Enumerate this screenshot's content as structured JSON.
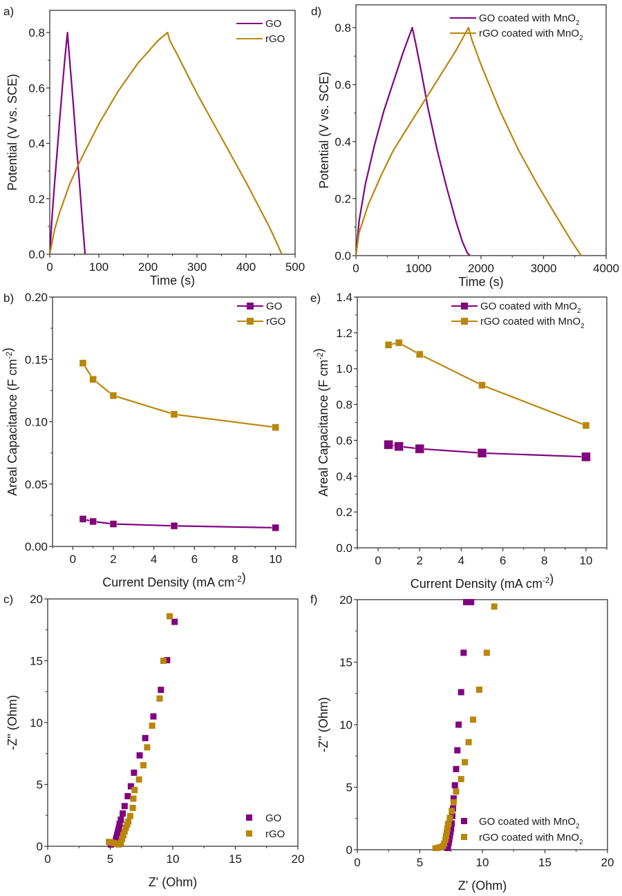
{
  "colors": {
    "go": "#800080",
    "rgo": "#b8860b",
    "axis": "#333333"
  },
  "chart_data": [
    {
      "id": "a",
      "panel_label": "a)",
      "type": "line",
      "xlabel": "Time (s)",
      "ylabel": "Potential (V vs. SCE)",
      "xlim": [
        0,
        500
      ],
      "ylim": [
        0,
        0.88
      ],
      "xticks": [
        0,
        100,
        200,
        300,
        400,
        500
      ],
      "yticks": [
        0.0,
        0.2,
        0.4,
        0.6,
        0.8
      ],
      "xtick_labels": [
        "0",
        "100",
        "200",
        "300",
        "400",
        "500"
      ],
      "ytick_labels": [
        "0.0",
        "0.2",
        "0.4",
        "0.6",
        "0.8"
      ],
      "legend_position": "top-right",
      "series": [
        {
          "name": "GO",
          "color_key": "go",
          "x": [
            0,
            5,
            10,
            15,
            20,
            25,
            30,
            36,
            42,
            48,
            54,
            60,
            66,
            72
          ],
          "y": [
            0,
            0.14,
            0.26,
            0.37,
            0.48,
            0.59,
            0.69,
            0.8,
            0.67,
            0.54,
            0.4,
            0.27,
            0.13,
            0
          ]
        },
        {
          "name": "rGO",
          "color_key": "rgo",
          "x": [
            0,
            10,
            20,
            40,
            60,
            80,
            100,
            120,
            140,
            160,
            180,
            200,
            220,
            240,
            245,
            260,
            300,
            350,
            400,
            450,
            473
          ],
          "y": [
            0,
            0.09,
            0.15,
            0.25,
            0.33,
            0.4,
            0.47,
            0.53,
            0.59,
            0.64,
            0.69,
            0.73,
            0.77,
            0.8,
            0.77,
            0.72,
            0.58,
            0.42,
            0.26,
            0.09,
            0
          ]
        }
      ]
    },
    {
      "id": "d",
      "panel_label": "d)",
      "type": "line",
      "xlabel": "Time (s)",
      "ylabel": "Potential (V vs. SCE)",
      "xlim": [
        0,
        4000
      ],
      "ylim": [
        0,
        0.88
      ],
      "xticks": [
        0,
        1000,
        2000,
        3000,
        4000
      ],
      "yticks": [
        0.0,
        0.2,
        0.4,
        0.6,
        0.8
      ],
      "xtick_labels": [
        "0",
        "1000",
        "2000",
        "3000",
        "4000"
      ],
      "ytick_labels": [
        "0.0",
        "0.2",
        "0.4",
        "0.6",
        "0.8"
      ],
      "legend_position": "top-right",
      "series": [
        {
          "name": "GO coated with MnO2",
          "color_key": "go",
          "x": [
            0,
            50,
            150,
            300,
            450,
            600,
            750,
            900,
            950,
            1050,
            1150,
            1300,
            1450,
            1600,
            1700,
            1780,
            1820
          ],
          "y": [
            0,
            0.12,
            0.25,
            0.39,
            0.51,
            0.61,
            0.71,
            0.8,
            0.75,
            0.64,
            0.52,
            0.37,
            0.24,
            0.12,
            0.05,
            0.01,
            0
          ]
        },
        {
          "name": "rGO coated with MnO2",
          "color_key": "rgo",
          "x": [
            0,
            50,
            200,
            400,
            600,
            800,
            1000,
            1200,
            1400,
            1600,
            1800,
            1850,
            2000,
            2300,
            2600,
            2900,
            3200,
            3450,
            3600
          ],
          "y": [
            0,
            0.08,
            0.18,
            0.28,
            0.37,
            0.44,
            0.51,
            0.58,
            0.65,
            0.72,
            0.8,
            0.76,
            0.67,
            0.51,
            0.37,
            0.25,
            0.14,
            0.05,
            0
          ]
        }
      ]
    },
    {
      "id": "b",
      "panel_label": "b)",
      "type": "line",
      "xlabel": "Current Density (mA cm-2)",
      "ylabel": "Areal Capacitance (F cm-2)",
      "xlim": [
        -1,
        11
      ],
      "ylim": [
        0,
        0.2
      ],
      "xticks": [
        0,
        2,
        4,
        6,
        8,
        10
      ],
      "yticks": [
        0.0,
        0.05,
        0.1,
        0.15,
        0.2
      ],
      "xtick_labels": [
        "0",
        "2",
        "4",
        "6",
        "8",
        "10"
      ],
      "ytick_labels": [
        "0.00",
        "0.05",
        "0.10",
        "0.15",
        "0.20"
      ],
      "legend_position": "top-right",
      "markers": "square",
      "series": [
        {
          "name": "GO",
          "color_key": "go",
          "x": [
            0.5,
            1,
            2,
            5,
            10
          ],
          "y": [
            0.022,
            0.02,
            0.018,
            0.0165,
            0.015
          ]
        },
        {
          "name": "rGO",
          "color_key": "rgo",
          "x": [
            0.5,
            1,
            2,
            5,
            10
          ],
          "y": [
            0.147,
            0.134,
            0.121,
            0.106,
            0.0955
          ]
        }
      ]
    },
    {
      "id": "e",
      "panel_label": "e)",
      "type": "line",
      "xlabel": "Current Density (mA cm-2)",
      "ylabel": "Areal Capacitance (F cm-2)",
      "xlim": [
        -1,
        11
      ],
      "ylim": [
        0,
        1.4
      ],
      "xticks": [
        0,
        2,
        4,
        6,
        8,
        10
      ],
      "yticks": [
        0.0,
        0.2,
        0.4,
        0.6,
        0.8,
        1.0,
        1.2,
        1.4
      ],
      "xtick_labels": [
        "0",
        "2",
        "4",
        "6",
        "8",
        "10"
      ],
      "ytick_labels": [
        "0.0",
        "0.2",
        "0.4",
        "0.6",
        "0.8",
        "1.0",
        "1.2",
        "1.4"
      ],
      "legend_position": "top-right",
      "markers": "square",
      "series": [
        {
          "name": "GO coated with MnO2",
          "color_key": "go",
          "x": [
            0.5,
            1,
            2,
            5,
            10
          ],
          "y": [
            0.576,
            0.566,
            0.553,
            0.529,
            0.508
          ]
        },
        {
          "name": "rGO coated with MnO2",
          "color_key": "rgo",
          "x": [
            0.5,
            1,
            2,
            5,
            10
          ],
          "y": [
            1.133,
            1.145,
            1.08,
            0.908,
            0.683
          ]
        }
      ]
    },
    {
      "id": "c",
      "panel_label": "c)",
      "type": "scatter",
      "xlabel": "Z' (Ohm)",
      "ylabel": "-Z'' (Ohm)",
      "xlim": [
        0,
        20
      ],
      "ylim": [
        0,
        20
      ],
      "xticks": [
        0,
        5,
        10,
        15,
        20
      ],
      "yticks": [
        0,
        5,
        10,
        15,
        20
      ],
      "xtick_labels": [
        "0",
        "5",
        "10",
        "15",
        "20"
      ],
      "ytick_labels": [
        "0",
        "5",
        "10",
        "15",
        "20"
      ],
      "legend_position": "bottom-right",
      "series": [
        {
          "name": "GO",
          "color_key": "go",
          "x": [
            5.05,
            5.2,
            5.35,
            5.45,
            5.5,
            5.55,
            5.6,
            5.65,
            5.7,
            5.75,
            5.85,
            6.0,
            6.15,
            6.4,
            6.65,
            6.9,
            7.35,
            7.8,
            8.45,
            9.05,
            9.55,
            10.15
          ],
          "y": [
            0.1,
            0.2,
            0.3,
            0.5,
            0.7,
            0.9,
            1.1,
            1.3,
            1.5,
            1.8,
            2.15,
            2.65,
            3.25,
            4.05,
            4.85,
            5.95,
            7.35,
            8.75,
            10.5,
            12.65,
            15.05,
            18.15
          ]
        },
        {
          "name": "rGO",
          "color_key": "rgo",
          "x": [
            4.9,
            5.1,
            5.3,
            5.5,
            5.7,
            5.85,
            5.95,
            6.05,
            6.15,
            6.25,
            6.35,
            6.45,
            6.6,
            6.8,
            6.85,
            6.95,
            7.3,
            7.65,
            7.95,
            8.35,
            8.95,
            9.25,
            9.75
          ],
          "y": [
            0.35,
            0.3,
            0.25,
            0.2,
            0.15,
            0.3,
            0.6,
            0.9,
            1.2,
            1.5,
            1.75,
            2.0,
            2.45,
            3.1,
            3.85,
            4.55,
            5.4,
            6.55,
            8.0,
            9.75,
            11.95,
            15.0,
            18.6
          ]
        }
      ]
    },
    {
      "id": "f",
      "panel_label": "f)",
      "type": "scatter",
      "xlabel": "Z' (Ohm)",
      "ylabel": "-Z'' (Ohm)",
      "xlim": [
        0,
        20
      ],
      "ylim": [
        0,
        20
      ],
      "xticks": [
        0,
        5,
        10,
        15,
        20
      ],
      "yticks": [
        0,
        5,
        10,
        15,
        20
      ],
      "xtick_labels": [
        "0",
        "5",
        "10",
        "15",
        "20"
      ],
      "ytick_labels": [
        "0",
        "5",
        "10",
        "15",
        "20"
      ],
      "legend_position": "bottom-right",
      "series": [
        {
          "name": "GO coated with MnO2",
          "color_key": "go",
          "x": [
            7.2,
            7.25,
            7.3,
            7.35,
            7.4,
            7.45,
            7.5,
            7.55,
            7.6,
            7.65,
            7.7,
            7.8,
            7.9,
            8.0,
            8.1,
            8.3,
            8.5,
            8.7,
            9.1
          ],
          "y": [
            0.1,
            0.3,
            0.55,
            0.8,
            1.1,
            1.4,
            1.7,
            2.1,
            2.7,
            3.3,
            4.1,
            5.15,
            6.45,
            7.95,
            10.0,
            12.6,
            15.75,
            19.8,
            19.8
          ]
        },
        {
          "name": "rGO coated with MnO2",
          "color_key": "rgo",
          "x": [
            6.25,
            6.45,
            6.65,
            6.85,
            6.95,
            7.05,
            7.1,
            7.15,
            7.2,
            7.25,
            7.3,
            7.4,
            7.55,
            7.7,
            7.9,
            8.3,
            8.6,
            8.9,
            9.25,
            9.75,
            10.35,
            10.95
          ],
          "y": [
            0.1,
            0.15,
            0.2,
            0.3,
            0.5,
            0.8,
            1.1,
            1.4,
            1.7,
            2.0,
            2.1,
            2.55,
            3.1,
            3.8,
            4.65,
            5.65,
            7.0,
            8.6,
            10.4,
            12.8,
            15.75,
            19.45
          ]
        }
      ]
    }
  ]
}
